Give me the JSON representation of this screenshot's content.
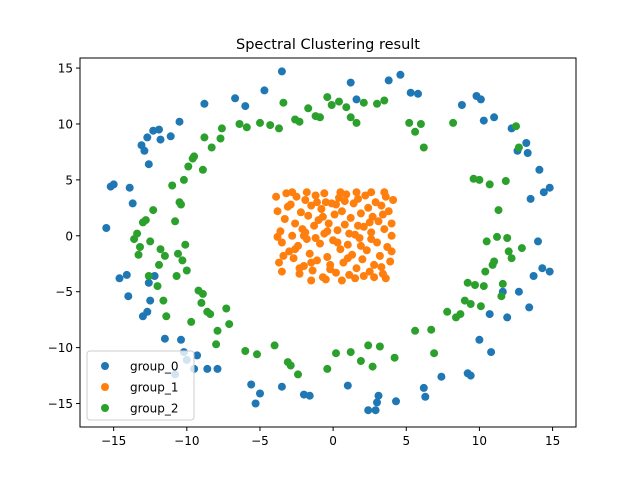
{
  "chart_data": {
    "type": "scatter",
    "title": "Spectral Clustering result",
    "xlabel": "",
    "ylabel": "",
    "xlim": [
      -17.3,
      16.6
    ],
    "ylim": [
      -17.1,
      15.9
    ],
    "x_ticks": [
      -15,
      -10,
      -5,
      0,
      5,
      10,
      15
    ],
    "y_ticks": [
      -15,
      -10,
      -5,
      0,
      5,
      10,
      15
    ],
    "grid": false,
    "legend_position": "lower-left",
    "series": [
      {
        "name": "group_0",
        "color": "#1f77b4",
        "points": [
          [
            -15.5,
            0.7
          ],
          [
            -15.2,
            4.4
          ],
          [
            -15.0,
            4.6
          ],
          [
            -14.6,
            -3.8
          ],
          [
            -14.1,
            -3.5
          ],
          [
            -14.0,
            -5.4
          ],
          [
            -13.9,
            4.3
          ],
          [
            -13.7,
            2.9
          ],
          [
            -13.1,
            8.1
          ],
          [
            -13.0,
            -7.2
          ],
          [
            -12.9,
            7.6
          ],
          [
            -12.7,
            -6.8
          ],
          [
            -12.7,
            8.8
          ],
          [
            -12.6,
            -4.2
          ],
          [
            -12.5,
            -5.8
          ],
          [
            -12.6,
            6.4
          ],
          [
            -12.3,
            9.4
          ],
          [
            -12.2,
            -3.6
          ],
          [
            -11.9,
            9.5
          ],
          [
            -11.8,
            8.6
          ],
          [
            -11.5,
            -9.2
          ],
          [
            -11.1,
            8.9
          ],
          [
            -10.8,
            -12.4
          ],
          [
            -10.5,
            10.2
          ],
          [
            -10.4,
            -9.3
          ],
          [
            -10.2,
            -10.4
          ],
          [
            -10.0,
            -11.1
          ],
          [
            -9.5,
            -11.9
          ],
          [
            -9.3,
            -10.7
          ],
          [
            -8.8,
            11.8
          ],
          [
            -8.6,
            -11.9
          ],
          [
            -7.9,
            -11.9
          ],
          [
            -6.7,
            12.3
          ],
          [
            -6.0,
            11.6
          ],
          [
            -5.6,
            -13.3
          ],
          [
            -5.3,
            -15.0
          ],
          [
            -5.0,
            -14.1
          ],
          [
            -4.7,
            13.0
          ],
          [
            -3.5,
            -13.5
          ],
          [
            -3.5,
            14.7
          ],
          [
            -2.0,
            -14.2
          ],
          [
            -1.6,
            -14.3
          ],
          [
            1.0,
            -13.4
          ],
          [
            1.2,
            13.7
          ],
          [
            1.6,
            12.2
          ],
          [
            2.4,
            -15.6
          ],
          [
            2.9,
            -15.6
          ],
          [
            3.0,
            -14.9
          ],
          [
            3.1,
            -14.3
          ],
          [
            3.8,
            13.9
          ],
          [
            4.3,
            -14.8
          ],
          [
            4.6,
            14.4
          ],
          [
            5.3,
            12.8
          ],
          [
            5.8,
            12.7
          ],
          [
            6.2,
            -13.6
          ],
          [
            6.3,
            -14.4
          ],
          [
            7.4,
            -12.6
          ],
          [
            8.8,
            11.7
          ],
          [
            9.2,
            -12.3
          ],
          [
            9.4,
            -12.5
          ],
          [
            9.8,
            12.5
          ],
          [
            10.0,
            -9.3
          ],
          [
            10.1,
            12.2
          ],
          [
            10.3,
            10.3
          ],
          [
            10.7,
            -7.0
          ],
          [
            10.8,
            -10.4
          ],
          [
            11.0,
            10.6
          ],
          [
            11.6,
            -5.0
          ],
          [
            11.9,
            -7.3
          ],
          [
            12.2,
            9.6
          ],
          [
            12.6,
            7.6
          ],
          [
            12.7,
            -5.0
          ],
          [
            13.2,
            8.3
          ],
          [
            13.3,
            7.4
          ],
          [
            13.4,
            -6.4
          ],
          [
            13.5,
            3.3
          ],
          [
            13.7,
            -3.6
          ],
          [
            14.0,
            -0.5
          ],
          [
            14.1,
            5.9
          ],
          [
            14.3,
            -2.9
          ],
          [
            14.4,
            3.9
          ],
          [
            14.8,
            -3.2
          ],
          [
            14.8,
            4.3
          ]
        ]
      },
      {
        "name": "group_1",
        "color": "#ff7f0e",
        "points": [
          [
            -3.9,
            3.5
          ],
          [
            -3.8,
            2.2
          ],
          [
            -3.6,
            0.4
          ],
          [
            -3.5,
            -0.6
          ],
          [
            -3.7,
            -2.4
          ],
          [
            -3.5,
            -3.2
          ],
          [
            -3.3,
            1.5
          ],
          [
            -3.2,
            3.8
          ],
          [
            -3.0,
            -1.4
          ],
          [
            -2.9,
            2.8
          ],
          [
            -2.8,
            0.0
          ],
          [
            -2.7,
            -2.0
          ],
          [
            -2.6,
            1.1
          ],
          [
            -2.5,
            3.5
          ],
          [
            -2.4,
            -0.9
          ],
          [
            -2.3,
            -3.4
          ],
          [
            -2.2,
            2.1
          ],
          [
            -2.1,
            0.6
          ],
          [
            -2.0,
            -2.7
          ],
          [
            -1.9,
            3.2
          ],
          [
            -1.8,
            -0.3
          ],
          [
            -1.7,
            1.8
          ],
          [
            -1.6,
            -1.6
          ],
          [
            -1.5,
            2.7
          ],
          [
            -1.4,
            -3.1
          ],
          [
            -1.3,
            0.9
          ],
          [
            -1.2,
            3.6
          ],
          [
            -1.1,
            -2.2
          ],
          [
            -1.0,
            1.4
          ],
          [
            -0.9,
            -0.7
          ],
          [
            -0.8,
            2.4
          ],
          [
            -0.7,
            -3.7
          ],
          [
            -0.6,
            0.2
          ],
          [
            -0.5,
            3.0
          ],
          [
            -0.4,
            -1.9
          ],
          [
            -0.3,
            1.1
          ],
          [
            -0.2,
            -2.6
          ],
          [
            -0.1,
            2.9
          ],
          [
            0.0,
            -0.4
          ],
          [
            0.1,
            1.9
          ],
          [
            0.2,
            -3.3
          ],
          [
            0.3,
            0.5
          ],
          [
            0.4,
            3.4
          ],
          [
            0.5,
            -1.2
          ],
          [
            0.6,
            2.2
          ],
          [
            0.7,
            -2.4
          ],
          [
            0.8,
            1.0
          ],
          [
            0.9,
            3.7
          ],
          [
            1.0,
            -0.8
          ],
          [
            1.1,
            -3.5
          ],
          [
            1.2,
            1.6
          ],
          [
            1.3,
            -1.7
          ],
          [
            1.4,
            2.9
          ],
          [
            1.5,
            0.1
          ],
          [
            1.6,
            -2.9
          ],
          [
            1.7,
            3.3
          ],
          [
            1.8,
            -0.2
          ],
          [
            1.9,
            2.0
          ],
          [
            2.0,
            -2.1
          ],
          [
            2.1,
            0.8
          ],
          [
            2.2,
            3.6
          ],
          [
            2.3,
            -1.3
          ],
          [
            2.4,
            2.5
          ],
          [
            2.5,
            -3.2
          ],
          [
            2.6,
            0.3
          ],
          [
            2.7,
            1.7
          ],
          [
            2.8,
            -2.6
          ],
          [
            2.9,
            3.0
          ],
          [
            3.0,
            -0.6
          ],
          [
            3.1,
            1.3
          ],
          [
            3.2,
            -1.8
          ],
          [
            3.3,
            2.7
          ],
          [
            3.4,
            -3.4
          ],
          [
            3.5,
            0.6
          ],
          [
            3.6,
            3.5
          ],
          [
            3.7,
            -1.0
          ],
          [
            3.8,
            2.2
          ],
          [
            3.9,
            -2.3
          ],
          [
            4.0,
            0.0
          ],
          [
            4.1,
            3.2
          ],
          [
            -3.4,
            -1.8
          ],
          [
            -2.6,
            -1.2
          ],
          [
            -1.9,
            0.3
          ],
          [
            -1.2,
            -0.2
          ],
          [
            -0.4,
            0.4
          ],
          [
            0.3,
            -0.6
          ],
          [
            1.1,
            0.2
          ],
          [
            1.9,
            -0.9
          ],
          [
            2.6,
            -0.3
          ],
          [
            3.4,
            1.9
          ],
          [
            -3.1,
            2.6
          ],
          [
            -2.3,
            -2.9
          ],
          [
            -1.5,
            -2.4
          ],
          [
            -0.7,
            1.7
          ],
          [
            0.2,
            2.8
          ],
          [
            1.0,
            -2.0
          ],
          [
            1.7,
            0.9
          ],
          [
            2.5,
            1.2
          ],
          [
            3.3,
            -2.8
          ],
          [
            -1.1,
            3.0
          ],
          [
            0.8,
            3.1
          ],
          [
            -2.0,
            0.0
          ],
          [
            -0.2,
            -3.0
          ],
          [
            2.1,
            -3.6
          ],
          [
            -1.5,
            -4.0
          ],
          [
            -0.5,
            -3.9
          ],
          [
            0.6,
            -4.0
          ],
          [
            1.5,
            -3.8
          ],
          [
            2.8,
            -3.7
          ],
          [
            3.6,
            -3.8
          ],
          [
            -2.8,
            3.9
          ],
          [
            -1.8,
            3.9
          ],
          [
            -0.6,
            3.8
          ],
          [
            0.5,
            3.9
          ],
          [
            1.6,
            3.9
          ],
          [
            2.6,
            3.9
          ],
          [
            3.5,
            3.9
          ],
          [
            -3.8,
            -0.1
          ],
          [
            4.0,
            -1.4
          ],
          [
            4.0,
            1.1
          ]
        ]
      },
      {
        "name": "group_2",
        "color": "#2ca02c",
        "points": [
          [
            -13.6,
            -0.3
          ],
          [
            -13.4,
            0.2
          ],
          [
            -13.3,
            -1.7
          ],
          [
            -13.0,
            1.2
          ],
          [
            -12.8,
            1.4
          ],
          [
            -12.6,
            -3.6
          ],
          [
            -12.3,
            2.3
          ],
          [
            -12.0,
            -4.5
          ],
          [
            -11.9,
            -2.6
          ],
          [
            -11.8,
            -1.2
          ],
          [
            -11.5,
            -1.8
          ],
          [
            -11.4,
            -7.2
          ],
          [
            -11.0,
            4.5
          ],
          [
            -10.8,
            1.3
          ],
          [
            -10.7,
            -3.6
          ],
          [
            -10.5,
            3.0
          ],
          [
            -10.4,
            2.8
          ],
          [
            -10.3,
            -2.2
          ],
          [
            -10.2,
            5.0
          ],
          [
            -10.1,
            -0.8
          ],
          [
            -10.0,
            -3.1
          ],
          [
            -9.9,
            6.2
          ],
          [
            -9.7,
            -7.7
          ],
          [
            -9.5,
            7.1
          ],
          [
            -9.2,
            -4.9
          ],
          [
            -9.0,
            -6.0
          ],
          [
            -8.9,
            -5.2
          ],
          [
            -8.8,
            8.8
          ],
          [
            -8.6,
            -6.8
          ],
          [
            -8.4,
            -7.0
          ],
          [
            -8.3,
            7.9
          ],
          [
            -8.0,
            -9.7
          ],
          [
            -7.9,
            -8.5
          ],
          [
            -7.6,
            9.6
          ],
          [
            -7.3,
            -6.5
          ],
          [
            -7.1,
            -7.9
          ],
          [
            -6.4,
            10.0
          ],
          [
            -6.0,
            -10.3
          ],
          [
            -5.9,
            9.7
          ],
          [
            -5.2,
            -10.6
          ],
          [
            -5.0,
            10.1
          ],
          [
            -4.0,
            -9.8
          ],
          [
            -3.7,
            9.6
          ],
          [
            -3.4,
            11.9
          ],
          [
            -3.1,
            -11.3
          ],
          [
            -2.9,
            -11.6
          ],
          [
            -2.6,
            10.4
          ],
          [
            -2.4,
            -12.4
          ],
          [
            -1.7,
            11.4
          ],
          [
            -1.2,
            10.7
          ],
          [
            -0.9,
            10.6
          ],
          [
            -0.4,
            -11.9
          ],
          [
            -0.4,
            12.4
          ],
          [
            -0.1,
            11.7
          ],
          [
            0.2,
            -10.5
          ],
          [
            0.4,
            12.0
          ],
          [
            1.2,
            -10.4
          ],
          [
            1.2,
            10.6
          ],
          [
            1.6,
            10.1
          ],
          [
            1.9,
            -11.2
          ],
          [
            2.1,
            11.9
          ],
          [
            2.4,
            -9.8
          ],
          [
            2.7,
            -11.7
          ],
          [
            3.0,
            11.8
          ],
          [
            3.2,
            -9.9
          ],
          [
            3.5,
            12.1
          ],
          [
            4.2,
            -10.9
          ],
          [
            5.2,
            10.1
          ],
          [
            5.6,
            9.3
          ],
          [
            5.6,
            -8.5
          ],
          [
            6.0,
            10.0
          ],
          [
            6.2,
            7.9
          ],
          [
            6.7,
            -8.4
          ],
          [
            6.9,
            -10.5
          ],
          [
            7.8,
            -6.8
          ],
          [
            8.2,
            10.1
          ],
          [
            8.4,
            -7.3
          ],
          [
            8.7,
            -7.0
          ],
          [
            9.0,
            -5.8
          ],
          [
            9.2,
            -4.2
          ],
          [
            9.4,
            -6.1
          ],
          [
            9.6,
            5.1
          ],
          [
            9.7,
            -4.4
          ],
          [
            10.0,
            5.0
          ],
          [
            10.1,
            -6.3
          ],
          [
            10.3,
            -4.5
          ],
          [
            10.4,
            -3.2
          ],
          [
            10.5,
            -0.5
          ],
          [
            10.7,
            4.6
          ],
          [
            10.9,
            -2.6
          ],
          [
            11.0,
            -2.3
          ],
          [
            11.2,
            -0.1
          ],
          [
            11.3,
            2.3
          ],
          [
            11.5,
            -5.4
          ],
          [
            11.6,
            -4.3
          ],
          [
            11.8,
            4.9
          ],
          [
            11.9,
            -0.2
          ],
          [
            12.0,
            -1.4
          ],
          [
            12.2,
            -2.0
          ],
          [
            12.5,
            9.8
          ],
          [
            12.7,
            7.9
          ],
          [
            12.9,
            -1.1
          ],
          [
            -9.6,
            6.9
          ],
          [
            -8.9,
            5.9
          ],
          [
            -10.6,
            -1.6
          ],
          [
            -11.6,
            -5.8
          ],
          [
            -12.5,
            -0.5
          ],
          [
            -13.2,
            -1.0
          ],
          [
            -7.7,
            8.7
          ],
          [
            -4.3,
            9.9
          ],
          [
            -2.3,
            10.2
          ],
          [
            0.9,
            11.5
          ]
        ]
      }
    ]
  }
}
